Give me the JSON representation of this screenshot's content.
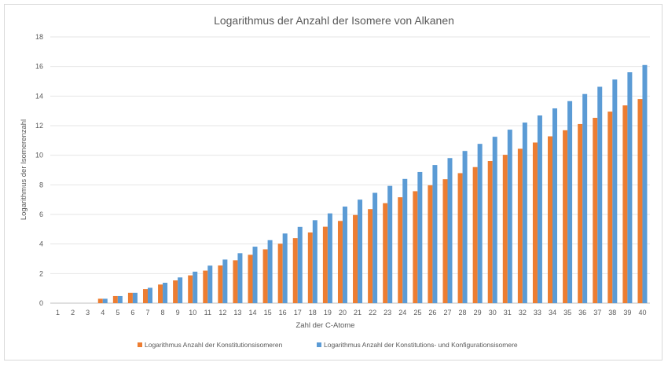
{
  "chart_data": {
    "type": "bar",
    "title": "Logarithmus der Anzahl der Isomere von Alkanen",
    "xlabel": "Zahl der C-Atome",
    "ylabel": "Logarithmus der Isomerenzahl",
    "ylim": [
      0,
      18
    ],
    "yticks": [
      0,
      2,
      4,
      6,
      8,
      10,
      12,
      14,
      16,
      18
    ],
    "grid": true,
    "legend_position": "bottom",
    "categories": [
      "1",
      "2",
      "3",
      "4",
      "5",
      "6",
      "7",
      "8",
      "9",
      "10",
      "11",
      "12",
      "13",
      "14",
      "15",
      "16",
      "17",
      "18",
      "19",
      "20",
      "21",
      "22",
      "23",
      "24",
      "25",
      "26",
      "27",
      "28",
      "29",
      "30",
      "31",
      "32",
      "33",
      "34",
      "35",
      "36",
      "37",
      "38",
      "39",
      "40"
    ],
    "series": [
      {
        "name": "Logarithmus Anzahl der Konstitutionsisomeren",
        "color": "#ed7d31",
        "values": [
          0,
          0,
          0,
          0.3,
          0.48,
          0.7,
          0.95,
          1.26,
          1.54,
          1.88,
          2.2,
          2.55,
          2.9,
          3.27,
          3.64,
          4.02,
          4.4,
          4.78,
          5.17,
          5.56,
          5.96,
          6.36,
          6.76,
          7.16,
          7.57,
          7.97,
          8.38,
          8.79,
          9.2,
          9.61,
          10.03,
          10.44,
          10.86,
          11.28,
          11.69,
          12.11,
          12.53,
          12.95,
          13.37,
          13.8
        ]
      },
      {
        "name": "Logarithmus Anzahl der Konstitutions- und Konfigurationsisomere",
        "color": "#5b9bd5",
        "values": [
          0,
          0,
          0,
          0.3,
          0.48,
          0.7,
          1.04,
          1.38,
          1.74,
          2.13,
          2.54,
          2.95,
          3.38,
          3.82,
          4.26,
          4.71,
          5.16,
          5.61,
          6.07,
          6.53,
          7.0,
          7.46,
          7.93,
          8.4,
          8.87,
          9.34,
          9.81,
          10.29,
          10.77,
          11.25,
          11.73,
          12.21,
          12.69,
          13.17,
          13.66,
          14.14,
          14.63,
          15.12,
          15.61,
          16.1
        ]
      }
    ]
  }
}
